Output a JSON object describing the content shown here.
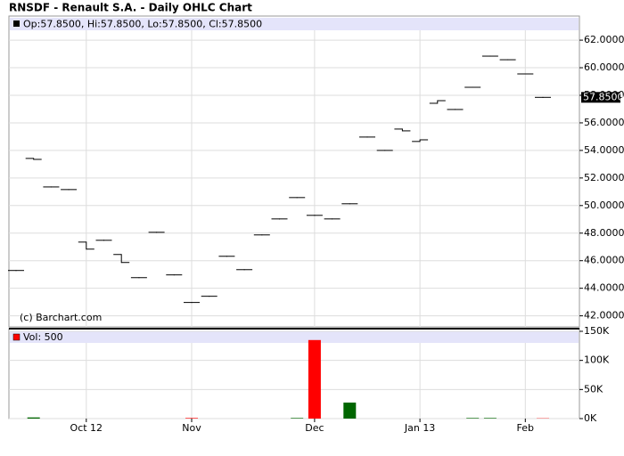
{
  "chart_data": [
    {
      "type": "ohlc",
      "title": "RNSDF - Renault S.A. - Daily OHLC Chart",
      "header": "Op:57.8500, Hi:57.8500, Lo:57.8500, Cl:57.8500",
      "credit": "(c) Barchart.com",
      "last_price": {
        "value": 57.85,
        "label": "57.8500"
      },
      "categories": [
        null,
        null,
        null,
        null,
        "Oct 12",
        null,
        null,
        null,
        null,
        null,
        "Nov",
        null,
        null,
        null,
        null,
        null,
        null,
        "Dec",
        null,
        null,
        null,
        null,
        null,
        "Jan 13",
        null,
        null,
        null,
        null,
        null,
        "Feb",
        null
      ],
      "open": [
        45.29,
        53.42,
        51.35,
        51.16,
        47.35,
        47.48,
        46.45,
        44.77,
        48.06,
        44.97,
        42.97,
        43.42,
        46.32,
        45.35,
        47.87,
        49.03,
        50.58,
        49.29,
        49.03,
        50.13,
        54.97,
        54.0,
        55.55,
        54.65,
        57.42,
        56.97,
        58.58,
        60.84,
        60.58,
        59.55,
        57.85
      ],
      "high": [
        45.29,
        53.42,
        51.35,
        51.16,
        47.35,
        47.48,
        46.45,
        44.77,
        48.06,
        44.97,
        42.97,
        43.42,
        46.32,
        45.35,
        47.87,
        49.03,
        50.58,
        49.29,
        49.03,
        50.13,
        54.97,
        54.0,
        55.55,
        54.77,
        57.61,
        56.97,
        58.58,
        60.84,
        60.58,
        59.55,
        57.85
      ],
      "low": [
        45.29,
        53.35,
        51.35,
        51.16,
        46.84,
        47.48,
        45.87,
        44.77,
        48.06,
        44.97,
        42.97,
        43.42,
        46.32,
        45.35,
        47.87,
        49.03,
        50.58,
        49.29,
        49.03,
        50.13,
        54.97,
        54.0,
        55.42,
        54.65,
        57.42,
        56.97,
        58.58,
        60.84,
        60.58,
        59.55,
        57.85
      ],
      "close": [
        45.29,
        53.35,
        51.35,
        51.16,
        46.84,
        47.48,
        45.87,
        44.77,
        48.06,
        44.97,
        42.97,
        43.42,
        46.32,
        45.35,
        47.87,
        49.03,
        50.58,
        49.29,
        49.03,
        50.13,
        54.97,
        54.0,
        55.42,
        54.77,
        57.61,
        56.97,
        58.58,
        60.84,
        60.58,
        59.55,
        57.85
      ],
      "color": "#000000",
      "ylim": [
        41.2,
        63.75
      ],
      "yticks": [
        {
          "value": 42,
          "label": "42.0000"
        },
        {
          "value": 44,
          "label": "44.0000"
        },
        {
          "value": 46,
          "label": "46.0000"
        },
        {
          "value": 48,
          "label": "48.0000"
        },
        {
          "value": 50,
          "label": "50.0000"
        },
        {
          "value": 52,
          "label": "52.0000"
        },
        {
          "value": 54,
          "label": "54.0000"
        },
        {
          "value": 56,
          "label": "56.0000"
        },
        {
          "value": 58,
          "label": "58.0000"
        },
        {
          "value": 60,
          "label": "60.0000"
        },
        {
          "value": 62,
          "label": "62.0000"
        }
      ],
      "grid": true
    },
    {
      "type": "bar",
      "header": "Vol: 500",
      "values": [
        0,
        2000,
        0,
        0,
        0,
        0,
        0,
        0,
        0,
        0,
        1000,
        0,
        0,
        0,
        0,
        0,
        1000,
        135000,
        0,
        27500,
        0,
        0,
        0,
        0,
        0,
        0,
        1000,
        1000,
        0,
        0,
        500
      ],
      "colors": [
        "#006600",
        "#006600",
        "#006600",
        "#006600",
        "#006600",
        "#006600",
        "#006600",
        "#006600",
        "#006600",
        "#006600",
        "#ff0000",
        "#006600",
        "#006600",
        "#006600",
        "#006600",
        "#006600",
        "#006600",
        "#ff0000",
        "#006600",
        "#006600",
        "#006600",
        "#006600",
        "#006600",
        "#006600",
        "#006600",
        "#006600",
        "#006600",
        "#006600",
        "#006600",
        "#006600",
        "#ff0000"
      ],
      "ylim": [
        0,
        150000
      ],
      "yticks": [
        {
          "value": 0,
          "label": "0K"
        },
        {
          "value": 50000,
          "label": "50K"
        },
        {
          "value": 100000,
          "label": "100K"
        },
        {
          "value": 150000,
          "label": "150K"
        }
      ],
      "grid": true
    }
  ]
}
